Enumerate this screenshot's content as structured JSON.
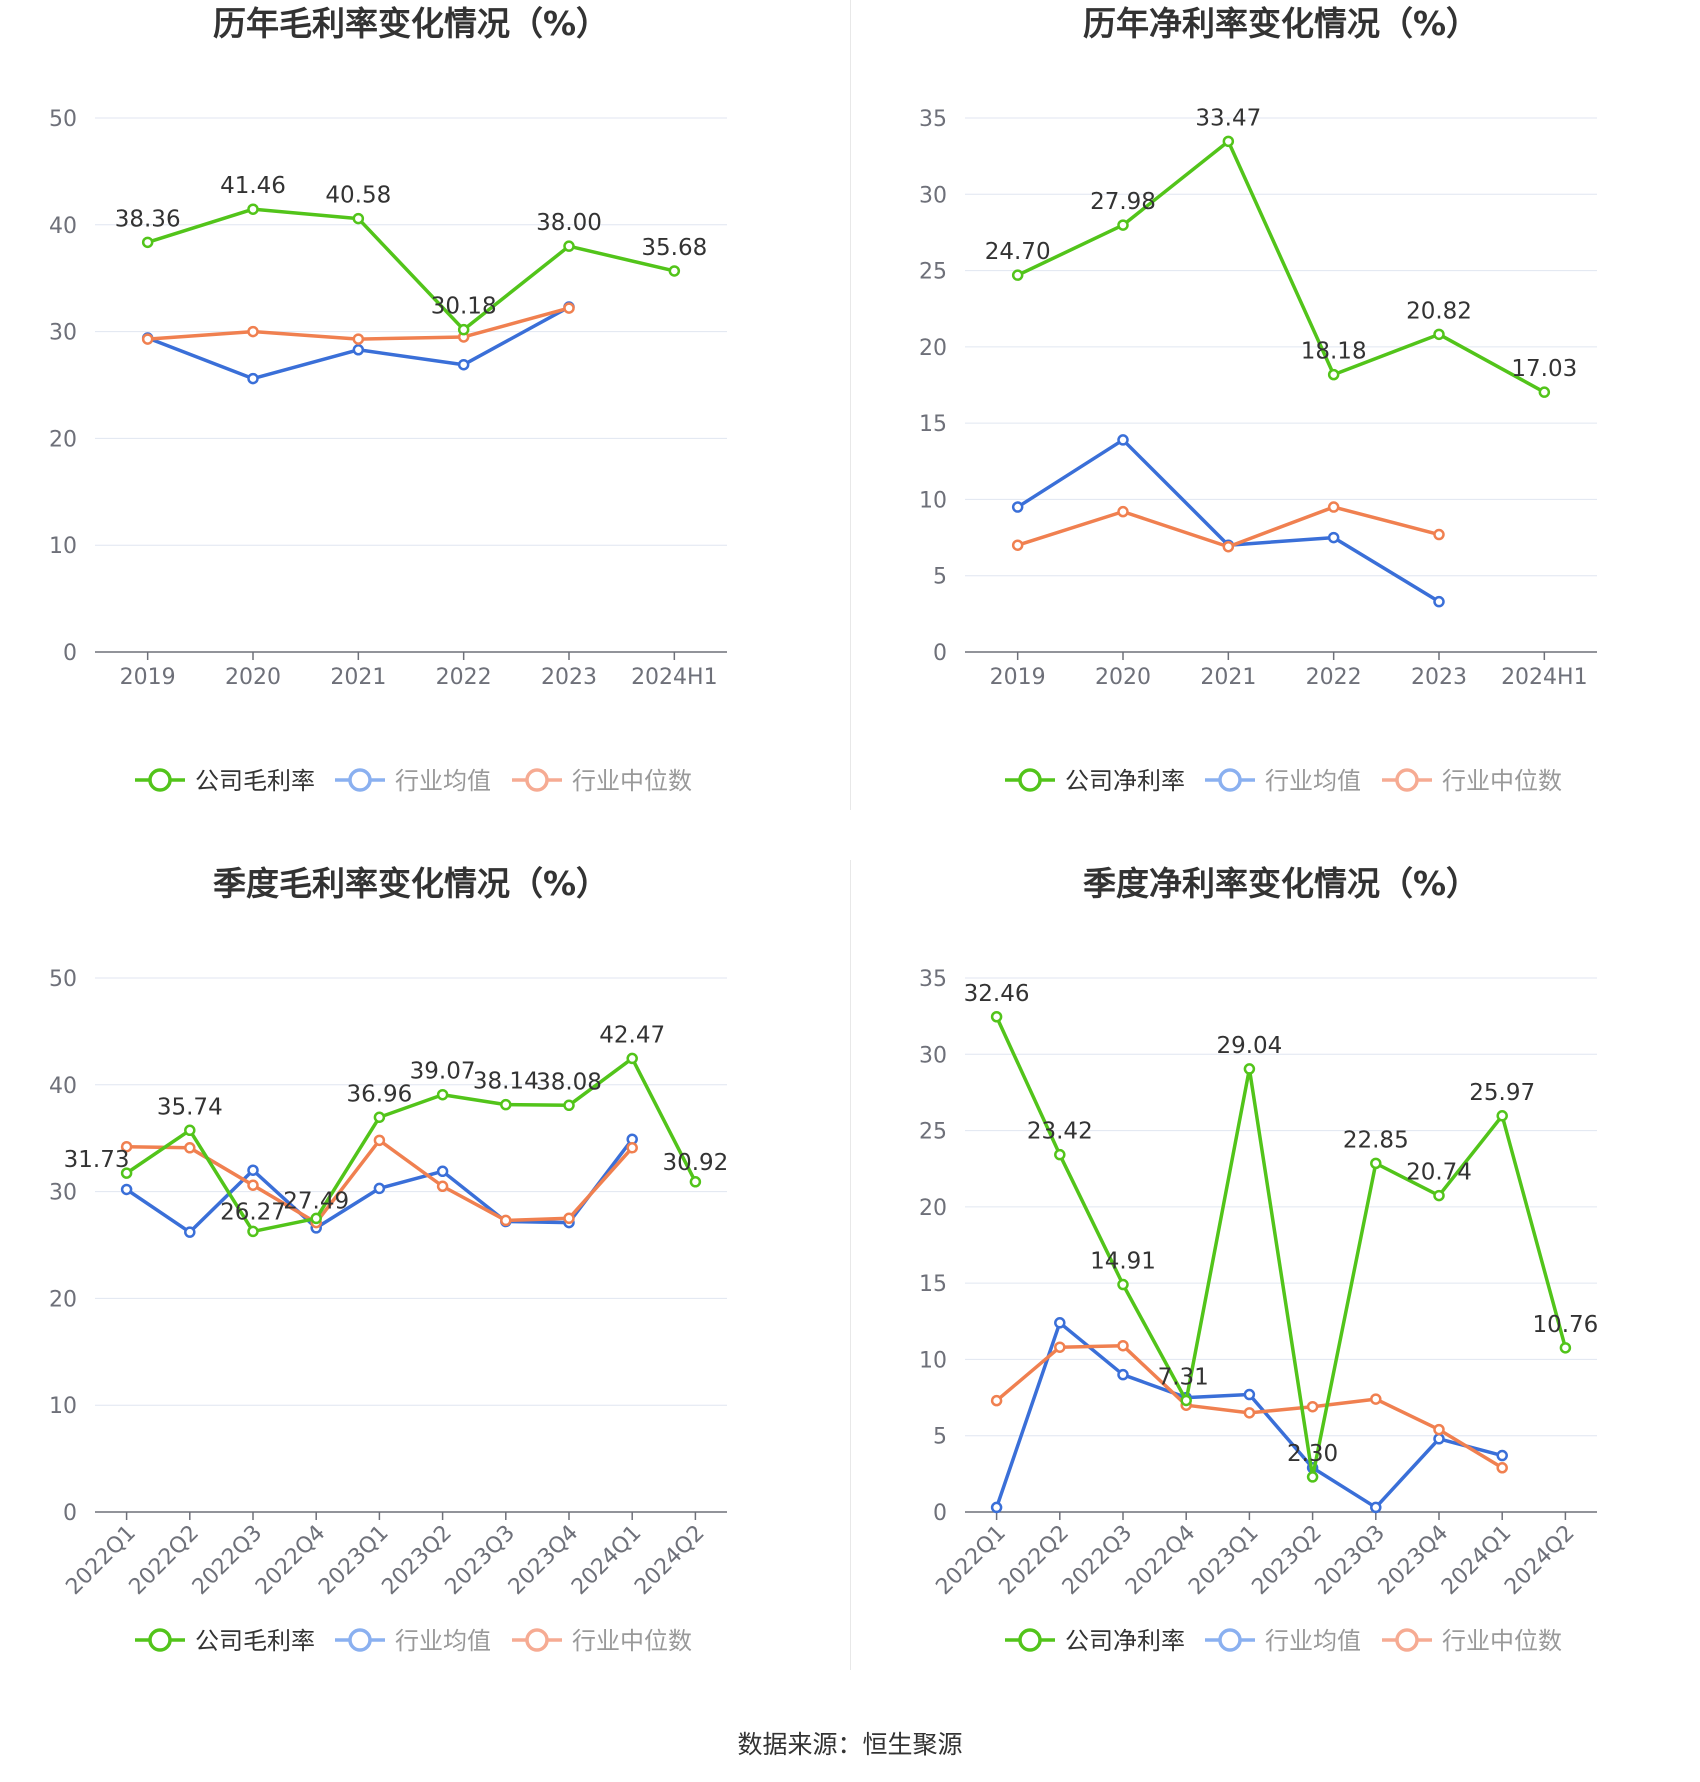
{
  "source": "数据来源：恒生聚源",
  "colors": {
    "company": "#52c41a",
    "avg": "#3a6fd8",
    "median": "#f08050",
    "avg_legend": "#8ab0f0",
    "median_legend": "#f6ab93"
  },
  "chart_data": [
    {
      "type": "line",
      "title": "历年毛利率变化情况（%）",
      "categories": [
        "2019",
        "2020",
        "2021",
        "2022",
        "2023",
        "2024H1"
      ],
      "ylim": [
        0,
        50
      ],
      "yticks": [
        0,
        10,
        20,
        30,
        40,
        50
      ],
      "grid": true,
      "legend_position": "bottom",
      "series": [
        {
          "name": "公司毛利率",
          "values": [
            38.36,
            41.46,
            40.58,
            30.18,
            38.0,
            35.68
          ],
          "labels": [
            "38.36",
            "41.46",
            "40.58",
            "30.18",
            "38.00",
            "35.68"
          ]
        },
        {
          "name": "行业均值",
          "values": [
            29.4,
            25.6,
            28.3,
            26.9,
            32.3,
            null
          ]
        },
        {
          "name": "行业中位数",
          "values": [
            29.3,
            30.0,
            29.3,
            29.5,
            32.2,
            null
          ]
        }
      ]
    },
    {
      "type": "line",
      "title": "历年净利率变化情况（%）",
      "categories": [
        "2019",
        "2020",
        "2021",
        "2022",
        "2023",
        "2024H1"
      ],
      "ylim": [
        0,
        35
      ],
      "yticks": [
        0,
        5,
        10,
        15,
        20,
        25,
        30,
        35
      ],
      "grid": true,
      "legend_position": "bottom",
      "series": [
        {
          "name": "公司净利率",
          "values": [
            24.7,
            27.98,
            33.47,
            18.18,
            20.82,
            17.03
          ],
          "labels": [
            "24.70",
            "27.98",
            "33.47",
            "18.18",
            "20.82",
            "17.03"
          ]
        },
        {
          "name": "行业均值",
          "values": [
            9.5,
            13.9,
            7.0,
            7.5,
            3.3,
            null
          ]
        },
        {
          "name": "行业中位数",
          "values": [
            7.0,
            9.2,
            6.9,
            9.5,
            7.7,
            null
          ]
        }
      ]
    },
    {
      "type": "line",
      "title": "季度毛利率变化情况（%）",
      "categories": [
        "2022Q1",
        "2022Q2",
        "2022Q3",
        "2022Q4",
        "2023Q1",
        "2023Q2",
        "2023Q3",
        "2023Q4",
        "2024Q1",
        "2024Q2"
      ],
      "ylim": [
        0,
        50
      ],
      "yticks": [
        0,
        10,
        20,
        30,
        40,
        50
      ],
      "grid": true,
      "legend_position": "bottom",
      "series": [
        {
          "name": "公司毛利率",
          "values": [
            31.73,
            35.74,
            26.27,
            27.49,
            36.96,
            39.07,
            38.14,
            38.08,
            42.47,
            30.92
          ],
          "labels": [
            "31.73",
            "35.74",
            "26.27",
            "27.49",
            "36.96",
            "39.07",
            "38.14",
            "38.08",
            "42.47",
            "30.92"
          ]
        },
        {
          "name": "行业均值",
          "values": [
            30.2,
            26.2,
            32.0,
            26.6,
            30.3,
            31.9,
            27.2,
            27.1,
            34.9,
            null
          ]
        },
        {
          "name": "行业中位数",
          "values": [
            34.2,
            34.1,
            30.6,
            27.1,
            34.8,
            30.5,
            27.3,
            27.5,
            34.1,
            null
          ]
        }
      ]
    },
    {
      "type": "line",
      "title": "季度净利率变化情况（%）",
      "categories": [
        "2022Q1",
        "2022Q2",
        "2022Q3",
        "2022Q4",
        "2023Q1",
        "2023Q2",
        "2023Q3",
        "2023Q4",
        "2024Q1",
        "2024Q2"
      ],
      "ylim": [
        0,
        35
      ],
      "yticks": [
        0,
        5,
        10,
        15,
        20,
        25,
        30,
        35
      ],
      "grid": true,
      "legend_position": "bottom",
      "series": [
        {
          "name": "公司净利率",
          "values": [
            32.46,
            23.42,
            14.91,
            7.31,
            29.04,
            2.3,
            22.85,
            20.74,
            25.97,
            10.76
          ],
          "labels": [
            "32.46",
            "23.42",
            "14.91",
            "7.31",
            "29.04",
            "2.30",
            "22.85",
            "20.74",
            "25.97",
            "10.76"
          ]
        },
        {
          "name": "行业均值",
          "values": [
            0.3,
            12.4,
            9.0,
            7.5,
            7.7,
            2.9,
            0.3,
            4.8,
            3.7,
            null
          ]
        },
        {
          "name": "行业中位数",
          "values": [
            7.3,
            10.8,
            10.9,
            7.0,
            6.5,
            6.9,
            7.4,
            5.4,
            2.9,
            null
          ]
        }
      ]
    }
  ]
}
